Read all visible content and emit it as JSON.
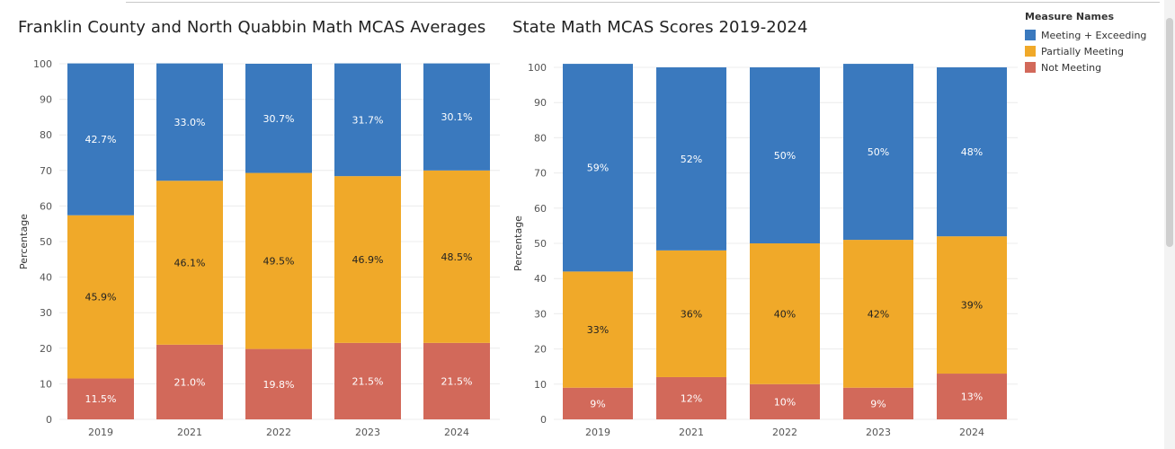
{
  "colors": {
    "meeting": "#3a79be",
    "partial": "#f0a929",
    "not": "#d2695a"
  },
  "legend": {
    "title": "Measure Names",
    "items": [
      "Meeting + Exceeding",
      "Partially Meeting",
      "Not Meeting"
    ]
  },
  "chart_data": [
    {
      "type": "bar",
      "stacked": true,
      "title": "Franklin County and North Quabbin Math MCAS Averages",
      "ylabel": "Percentage",
      "xlabel": "",
      "ylim": [
        0,
        100
      ],
      "yticks": [
        0,
        10,
        20,
        30,
        40,
        50,
        60,
        70,
        80,
        90,
        100
      ],
      "categories": [
        "2019",
        "2021",
        "2022",
        "2023",
        "2024"
      ],
      "series": [
        {
          "name": "Not Meeting",
          "values": [
            11.5,
            21.0,
            19.8,
            21.5,
            21.5
          ],
          "labels": [
            "11.5%",
            "21.0%",
            "19.8%",
            "21.5%",
            "21.5%"
          ]
        },
        {
          "name": "Partially Meeting",
          "values": [
            45.9,
            46.1,
            49.5,
            46.9,
            48.5
          ],
          "labels": [
            "45.9%",
            "46.1%",
            "49.5%",
            "46.9%",
            "48.5%"
          ]
        },
        {
          "name": "Meeting + Exceeding",
          "values": [
            42.7,
            33.0,
            30.7,
            31.7,
            30.1
          ],
          "labels": [
            "42.7%",
            "33.0%",
            "30.7%",
            "31.7%",
            "30.1%"
          ]
        }
      ]
    },
    {
      "type": "bar",
      "stacked": true,
      "title": "State Math MCAS Scores 2019-2024",
      "ylabel": "Percentage",
      "xlabel": "",
      "ylim": [
        0,
        100
      ],
      "yticks": [
        0,
        10,
        20,
        30,
        40,
        50,
        60,
        70,
        80,
        90,
        100
      ],
      "categories": [
        "2019",
        "2021",
        "2022",
        "2023",
        "2024"
      ],
      "series": [
        {
          "name": "Not Meeting",
          "values": [
            9,
            12,
            10,
            9,
            13
          ],
          "labels": [
            "9%",
            "12%",
            "10%",
            "9%",
            "13%"
          ]
        },
        {
          "name": "Partially Meeting",
          "values": [
            33,
            36,
            40,
            42,
            39
          ],
          "labels": [
            "33%",
            "36%",
            "40%",
            "42%",
            "39%"
          ]
        },
        {
          "name": "Meeting + Exceeding",
          "values": [
            59,
            52,
            50,
            50,
            48
          ],
          "labels": [
            "59%",
            "52%",
            "50%",
            "50%",
            "48%"
          ]
        }
      ]
    }
  ]
}
